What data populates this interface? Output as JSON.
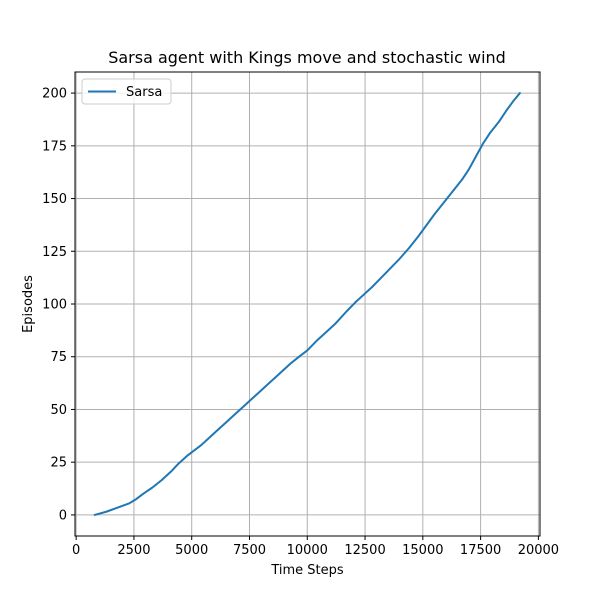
{
  "chart_data": {
    "type": "line",
    "title": "Sarsa agent with Kings move and stochastic wind",
    "xlabel": "Time Steps",
    "ylabel": "Episodes",
    "xlim": [
      -50,
      20070
    ],
    "ylim": [
      -10,
      210
    ],
    "xticks": [
      0,
      2500,
      5000,
      7500,
      10000,
      12500,
      15000,
      17500,
      20000
    ],
    "yticks": [
      0,
      25,
      50,
      75,
      100,
      125,
      150,
      175,
      200
    ],
    "grid": true,
    "legend_position": "upper-left",
    "series": [
      {
        "name": "Sarsa",
        "color": "#1f77b4",
        "x": [
          800,
          1300,
          1800,
          2300,
          2600,
          2900,
          3300,
          3700,
          4100,
          4400,
          4800,
          5100,
          5400,
          5800,
          6100,
          6500,
          6900,
          7200,
          7600,
          7900,
          8300,
          8700,
          9000,
          9300,
          9700,
          10000,
          10400,
          10800,
          11200,
          11700,
          12100,
          12400,
          12800,
          13200,
          13600,
          14000,
          14400,
          14800,
          15200,
          15500,
          15900,
          16300,
          16700,
          17000,
          17300,
          17600,
          17900,
          18300,
          18600,
          18900,
          19200
        ],
        "y": [
          0,
          1.5,
          3.5,
          5.5,
          7.5,
          10,
          13,
          16.5,
          20.5,
          24,
          28,
          30.5,
          33,
          37,
          40,
          44,
          48,
          51,
          55,
          58,
          62,
          66,
          69,
          72,
          75.5,
          78,
          82.5,
          86.5,
          90.5,
          96.5,
          101,
          104,
          108,
          112.5,
          117,
          121.5,
          126.5,
          132,
          138,
          142.5,
          148,
          153.5,
          159,
          164,
          170,
          176,
          181,
          186.5,
          191.5,
          196,
          200
        ]
      }
    ]
  }
}
